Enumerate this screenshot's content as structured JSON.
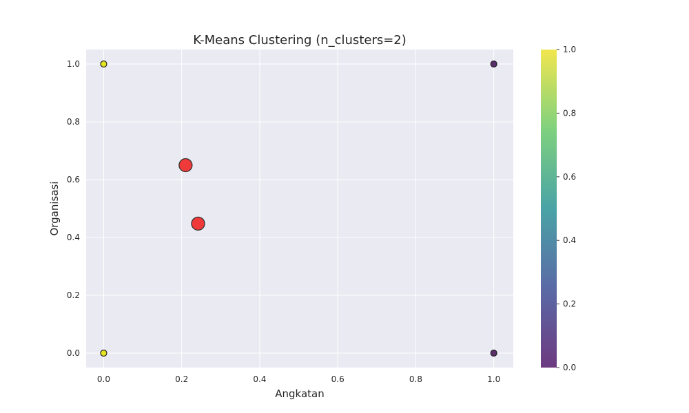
{
  "chart_data": {
    "type": "scatter",
    "title": "K-Means Clustering (n_clusters=2)",
    "xlabel": "Angkatan",
    "ylabel": "Organisasi",
    "xlim": [
      -0.045,
      1.05
    ],
    "ylim": [
      -0.05,
      1.05
    ],
    "xticks": [
      0.0,
      0.2,
      0.4,
      0.6,
      0.8,
      1.0
    ],
    "yticks": [
      0.0,
      0.2,
      0.4,
      0.6,
      0.8,
      1.0
    ],
    "xtick_labels": [
      "0.0",
      "0.2",
      "0.4",
      "0.6",
      "0.8",
      "1.0"
    ],
    "ytick_labels": [
      "0.0",
      "0.2",
      "0.4",
      "0.6",
      "0.8",
      "1.0"
    ],
    "grid": true,
    "points": [
      {
        "x": 0.0,
        "y": 1.0,
        "cluster": 1
      },
      {
        "x": 0.0,
        "y": 0.0,
        "cluster": 1
      },
      {
        "x": 1.0,
        "y": 1.0,
        "cluster": 0
      },
      {
        "x": 1.0,
        "y": 0.0,
        "cluster": 0
      }
    ],
    "centroids": [
      {
        "x": 0.21,
        "y": 0.65
      },
      {
        "x": 0.242,
        "y": 0.448
      }
    ],
    "colorbar": {
      "range": [
        0.0,
        1.0
      ],
      "ticks": [
        0.0,
        0.2,
        0.4,
        0.6,
        0.8,
        1.0
      ],
      "tick_labels": [
        "0.0",
        "0.2",
        "0.4",
        "0.6",
        "0.8",
        "1.0"
      ],
      "colormap": "viridis"
    },
    "colors": {
      "plot_background": "#eaeaf2",
      "grid": "#ffffff",
      "centroid_fill": "#f03a3a",
      "marker_edge": "#222222",
      "cluster_0": "#5a2d6b",
      "cluster_1": "#e6e421"
    }
  }
}
